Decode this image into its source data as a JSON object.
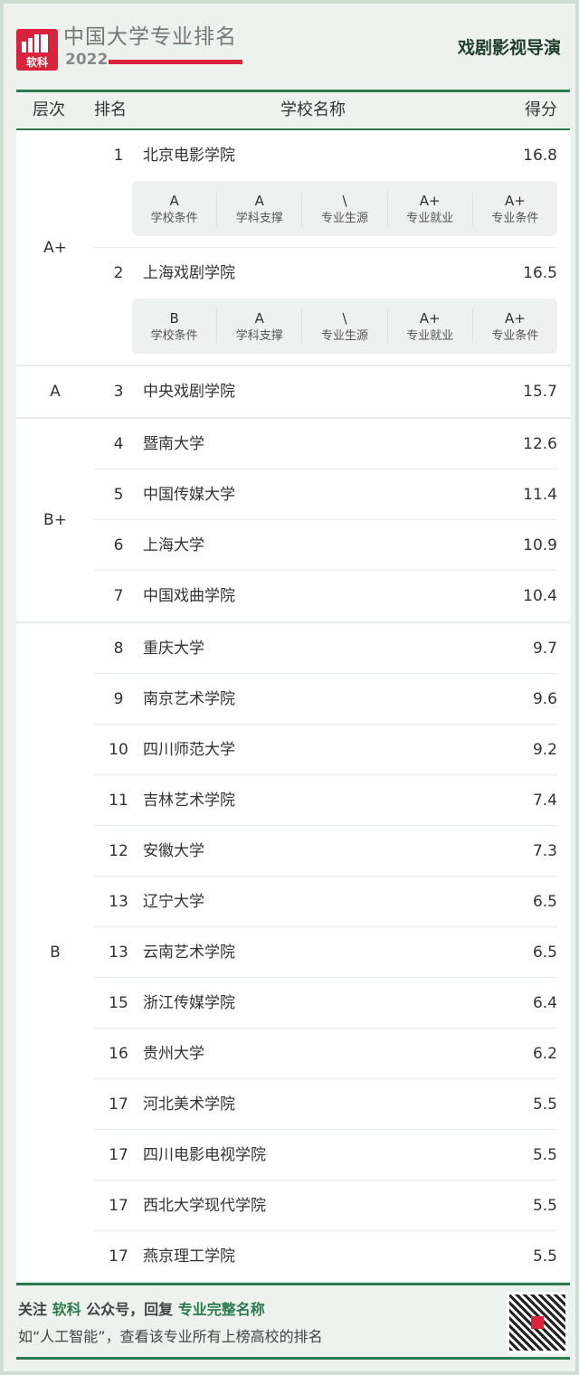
{
  "header": {
    "brand": "中国大学专业排名",
    "year": "2022",
    "logo_text": "软科",
    "major": "戏剧影视导演"
  },
  "columns": {
    "tier": "层次",
    "rank": "排名",
    "name": "学校名称",
    "score": "得分"
  },
  "colors": {
    "accent_green": "#2d7a4e",
    "brand_red": "#d9233c"
  },
  "groups": [
    {
      "tier": "A+",
      "rows": [
        {
          "rank": "1",
          "name": "北京电影学院",
          "score": "16.8",
          "details": [
            {
              "grade": "A",
              "label": "学校条件"
            },
            {
              "grade": "A",
              "label": "学科支撑"
            },
            {
              "grade": "\\",
              "label": "专业生源"
            },
            {
              "grade": "A+",
              "label": "专业就业"
            },
            {
              "grade": "A+",
              "label": "专业条件"
            }
          ]
        },
        {
          "rank": "2",
          "name": "上海戏剧学院",
          "score": "16.5",
          "details": [
            {
              "grade": "B",
              "label": "学校条件"
            },
            {
              "grade": "A",
              "label": "学科支撑"
            },
            {
              "grade": "\\",
              "label": "专业生源"
            },
            {
              "grade": "A+",
              "label": "专业就业"
            },
            {
              "grade": "A+",
              "label": "专业条件"
            }
          ]
        }
      ]
    },
    {
      "tier": "A",
      "rows": [
        {
          "rank": "3",
          "name": "中央戏剧学院",
          "score": "15.7"
        }
      ]
    },
    {
      "tier": "B+",
      "rows": [
        {
          "rank": "4",
          "name": "暨南大学",
          "score": "12.6"
        },
        {
          "rank": "5",
          "name": "中国传媒大学",
          "score": "11.4"
        },
        {
          "rank": "6",
          "name": "上海大学",
          "score": "10.9"
        },
        {
          "rank": "7",
          "name": "中国戏曲学院",
          "score": "10.4"
        }
      ]
    },
    {
      "tier": "B",
      "rows": [
        {
          "rank": "8",
          "name": "重庆大学",
          "score": "9.7"
        },
        {
          "rank": "9",
          "name": "南京艺术学院",
          "score": "9.6"
        },
        {
          "rank": "10",
          "name": "四川师范大学",
          "score": "9.2"
        },
        {
          "rank": "11",
          "name": "吉林艺术学院",
          "score": "7.4"
        },
        {
          "rank": "12",
          "name": "安徽大学",
          "score": "7.3"
        },
        {
          "rank": "13",
          "name": "辽宁大学",
          "score": "6.5"
        },
        {
          "rank": "13",
          "name": "云南艺术学院",
          "score": "6.5"
        },
        {
          "rank": "15",
          "name": "浙江传媒学院",
          "score": "6.4"
        },
        {
          "rank": "16",
          "name": "贵州大学",
          "score": "6.2"
        },
        {
          "rank": "17",
          "name": "河北美术学院",
          "score": "5.5"
        },
        {
          "rank": "17",
          "name": "四川电影电视学院",
          "score": "5.5"
        },
        {
          "rank": "17",
          "name": "西北大学现代学院",
          "score": "5.5"
        },
        {
          "rank": "17",
          "name": "燕京理工学院",
          "score": "5.5"
        }
      ]
    }
  ],
  "footer": {
    "p1": "关注 ",
    "p2": "软科",
    "p3": " 公众号，回复 ",
    "p4": "专业完整名称",
    "line2": "如“人工智能”，查看该专业所有上榜高校的排名"
  }
}
